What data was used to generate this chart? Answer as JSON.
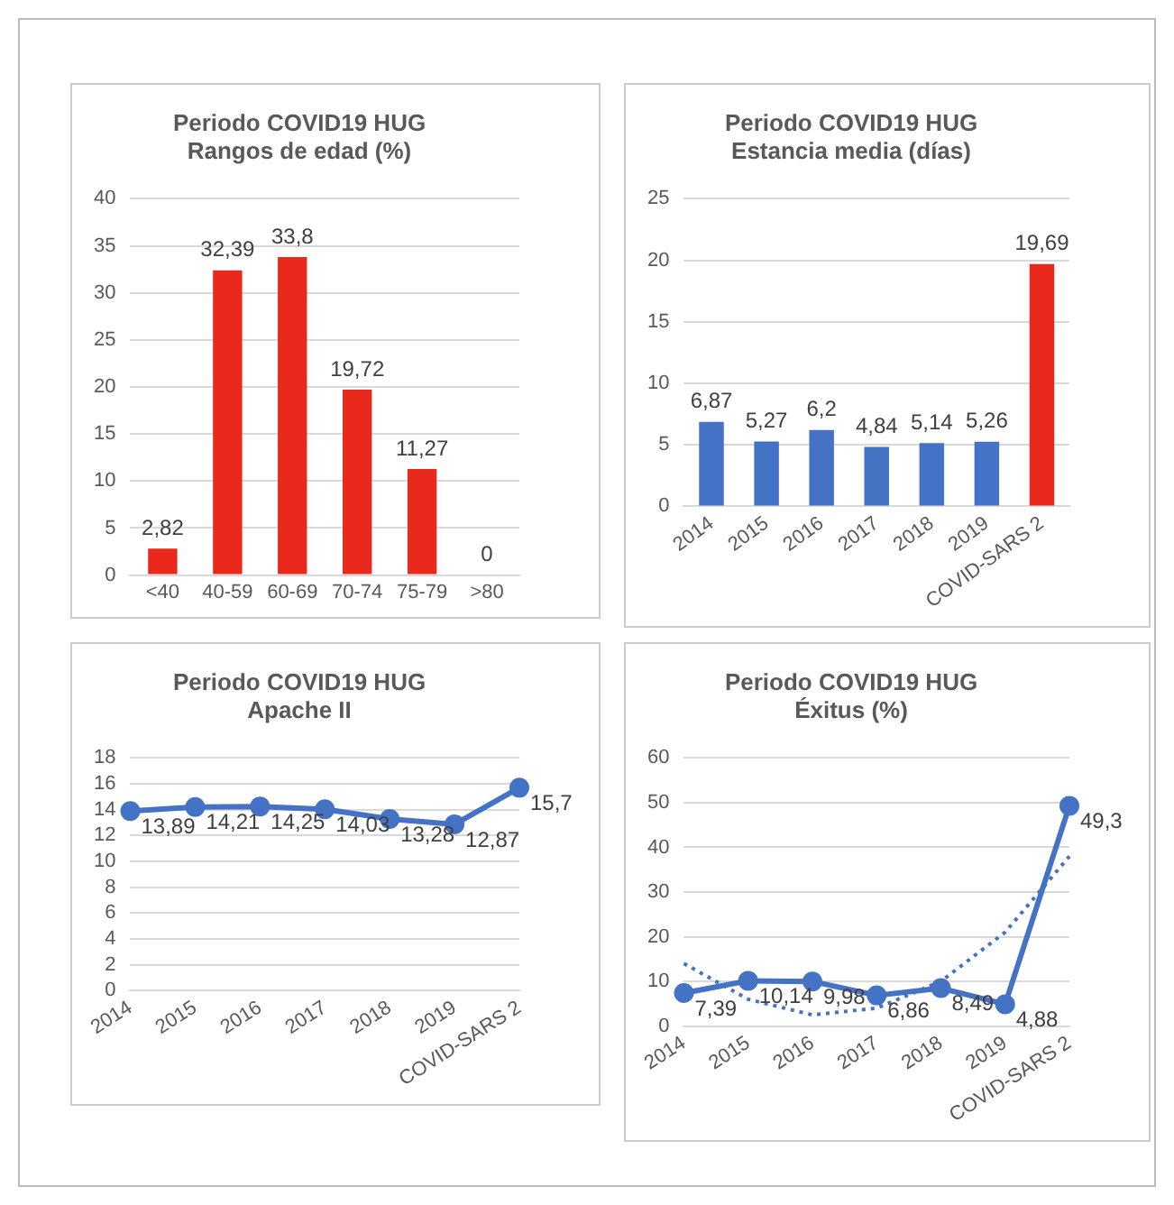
{
  "chart_data": [
    {
      "type": "bar",
      "title": "Periodo COVID19 HUG\nRangos de edad (%)",
      "categories": [
        "<40",
        "40-59",
        "60-69",
        "70-74",
        "75-79",
        ">80"
      ],
      "values": [
        2.82,
        32.39,
        33.8,
        19.72,
        11.27,
        0
      ],
      "color": "#e8291c",
      "value_labels": [
        "2,82",
        "32,39",
        "33,8",
        "19,72",
        "11,27",
        "0"
      ],
      "ylim": [
        0,
        40
      ],
      "yticks": [
        0,
        5,
        10,
        15,
        20,
        25,
        30,
        35,
        40
      ],
      "grid": "y",
      "legend": false
    },
    {
      "type": "bar",
      "title": "Periodo COVID19 HUG\nEstancia media (días)",
      "categories": [
        "2014",
        "2015",
        "2016",
        "2017",
        "2018",
        "2019",
        "COVID-SARS 2"
      ],
      "values": [
        6.87,
        5.27,
        6.2,
        4.84,
        5.14,
        5.26,
        19.69
      ],
      "colors": [
        "#4472c4",
        "#4472c4",
        "#4472c4",
        "#4472c4",
        "#4472c4",
        "#4472c4",
        "#e8291c"
      ],
      "value_labels": [
        "6,87",
        "5,27",
        "6,2",
        "4,84",
        "5,14",
        "5,26",
        "19,69"
      ],
      "ylim": [
        0,
        25
      ],
      "yticks": [
        0,
        5,
        10,
        15,
        20,
        25
      ],
      "grid": "y",
      "legend": false
    },
    {
      "type": "line",
      "title": "Periodo COVID19 HUG\nApache II",
      "categories": [
        "2014",
        "2015",
        "2016",
        "2017",
        "2018",
        "2019",
        "COVID-SARS 2"
      ],
      "series": [
        {
          "color": "#4472c4",
          "values": [
            13.89,
            14.21,
            14.25,
            14.03,
            13.28,
            12.87,
            15.7
          ],
          "value_labels": [
            "13,89",
            "14,21",
            "14,25",
            "14,03",
            "13,28",
            "12,87",
            "15,7"
          ]
        }
      ],
      "ylim": [
        0,
        18
      ],
      "yticks": [
        0,
        2,
        4,
        6,
        8,
        10,
        12,
        14,
        16,
        18
      ],
      "grid": "y",
      "legend": false,
      "marker": "circle",
      "line_style": "solid"
    },
    {
      "type": "line",
      "title": "Periodo COVID19 HUG\nÉxitus (%)",
      "categories": [
        "2014",
        "2015",
        "2016",
        "2017",
        "2018",
        "2019",
        "COVID-SARS 2"
      ],
      "series": [
        {
          "color": "#4472c4",
          "values": [
            7.39,
            10.14,
            9.98,
            6.86,
            8.49,
            4.88,
            49.3
          ],
          "value_labels": [
            "7,39",
            "10,14",
            "9,98",
            "6,86",
            "8,49",
            "4,88",
            "49,3"
          ],
          "marker": "circle",
          "line_style": "solid"
        },
        {
          "color": "#4472c4",
          "values": [
            14,
            6,
            2.5,
            4,
            10,
            21,
            38
          ],
          "marker": "none",
          "line_style": "dotted"
        }
      ],
      "ylim": [
        0,
        60
      ],
      "yticks": [
        0,
        10,
        20,
        30,
        40,
        50,
        60
      ],
      "grid": "y",
      "legend": false
    }
  ]
}
